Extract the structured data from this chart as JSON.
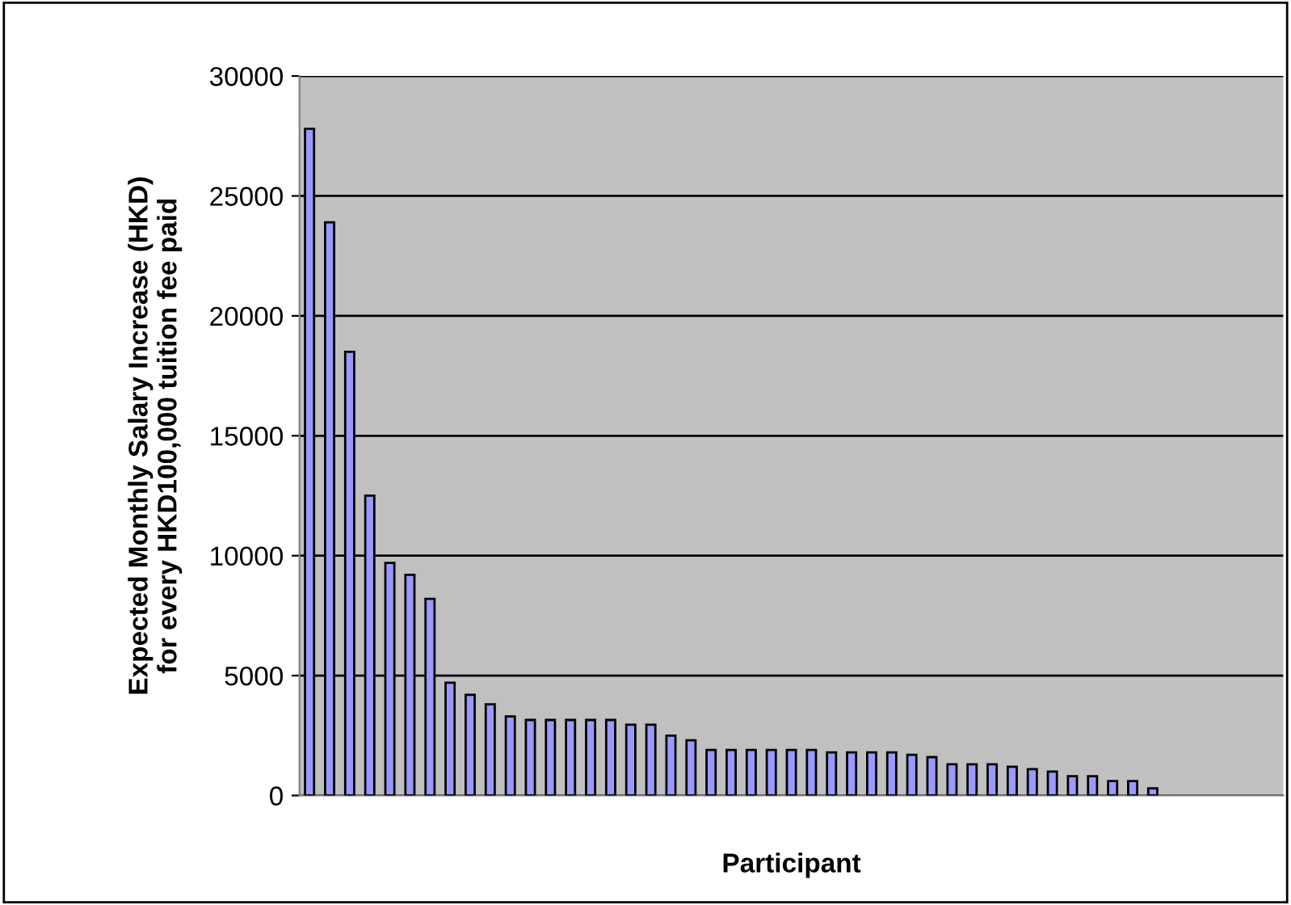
{
  "chart_data": {
    "type": "bar",
    "xlabel": "Participant",
    "ylabel": "Expected Monthly Salary Increase (HKD)\nfor every HKD100,000 tuition fee paid",
    "categories": [
      null,
      null,
      null,
      null,
      null,
      null,
      null,
      null,
      null,
      null,
      null,
      null,
      null,
      null,
      null,
      null,
      null,
      null,
      null,
      null,
      null,
      null,
      null,
      null,
      null,
      null,
      null,
      null,
      null,
      null,
      null,
      null,
      null,
      null,
      null,
      null,
      null,
      null,
      null,
      null,
      null,
      null,
      null,
      null,
      null,
      null,
      null,
      null,
      null
    ],
    "values": [
      27800,
      23900,
      18500,
      12500,
      9700,
      9200,
      8200,
      4700,
      4200,
      3800,
      3300,
      3150,
      3150,
      3150,
      3150,
      3150,
      2950,
      2950,
      2500,
      2300,
      1900,
      1900,
      1900,
      1900,
      1900,
      1900,
      1800,
      1800,
      1800,
      1800,
      1700,
      1600,
      1300,
      1300,
      1300,
      1200,
      1100,
      1000,
      800,
      800,
      600,
      600,
      300,
      null,
      null,
      null,
      null,
      null,
      null
    ],
    "color": "#9999ff",
    "ylim": [
      0,
      30000
    ],
    "yticks": [
      0,
      5000,
      10000,
      15000,
      20000,
      25000,
      30000
    ],
    "grid": "y",
    "legend": false
  }
}
